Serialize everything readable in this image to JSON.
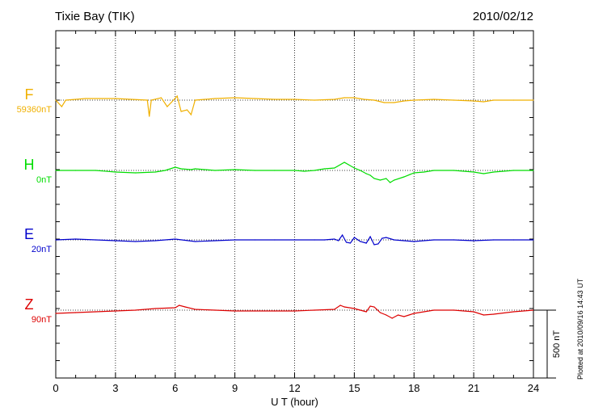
{
  "header": {
    "station": "Tixie Bay (TIK)",
    "date": "2010/02/12"
  },
  "note": "Plotted at 2010/09/16 14:43 UT",
  "scale_label": "500 nT",
  "chart_data": {
    "type": "line",
    "xlabel": "U T (hour)",
    "xlim": [
      0,
      24
    ],
    "xticks": [
      "0",
      "3",
      "6",
      "9",
      "12",
      "15",
      "18",
      "21",
      "24"
    ],
    "grid": "vertical dotted lines every 3 hours",
    "scale_bar_nT": 500,
    "series": [
      {
        "name": "F",
        "baseline": "59360nT",
        "color": "#f0b000",
        "points": [
          [
            0,
            0
          ],
          [
            0.3,
            -8
          ],
          [
            0.5,
            0
          ],
          [
            1.5,
            2
          ],
          [
            3,
            2
          ],
          [
            4.6,
            0
          ],
          [
            4.7,
            -20
          ],
          [
            4.8,
            0
          ],
          [
            5.3,
            3
          ],
          [
            5.6,
            -8
          ],
          [
            5.8,
            -3
          ],
          [
            6.1,
            5
          ],
          [
            6.3,
            -14
          ],
          [
            6.6,
            -12
          ],
          [
            6.8,
            -18
          ],
          [
            7,
            0
          ],
          [
            8,
            2
          ],
          [
            9,
            3
          ],
          [
            10,
            2
          ],
          [
            11,
            1
          ],
          [
            12,
            1
          ],
          [
            13,
            0
          ],
          [
            14,
            1
          ],
          [
            14.5,
            3
          ],
          [
            15,
            3
          ],
          [
            15.5,
            1
          ],
          [
            16,
            0
          ],
          [
            16.5,
            -3
          ],
          [
            17,
            -3
          ],
          [
            17.5,
            -1
          ],
          [
            18,
            0
          ],
          [
            19,
            1
          ],
          [
            20,
            0
          ],
          [
            21,
            -1
          ],
          [
            21.5,
            -2
          ],
          [
            22,
            0
          ],
          [
            23,
            0
          ],
          [
            24,
            0
          ]
        ]
      },
      {
        "name": "H",
        "baseline": "0nT",
        "color": "#00dd00",
        "points": [
          [
            0,
            0
          ],
          [
            1,
            0
          ],
          [
            2,
            0
          ],
          [
            3,
            -2
          ],
          [
            4,
            -3
          ],
          [
            5,
            -2
          ],
          [
            5.5,
            0
          ],
          [
            6,
            4
          ],
          [
            6.3,
            2
          ],
          [
            6.8,
            1
          ],
          [
            7,
            2
          ],
          [
            8,
            0
          ],
          [
            9,
            1
          ],
          [
            10,
            0
          ],
          [
            11,
            0
          ],
          [
            12,
            0
          ],
          [
            12.5,
            -1
          ],
          [
            13,
            0
          ],
          [
            13.5,
            2
          ],
          [
            14,
            3
          ],
          [
            14.5,
            10
          ],
          [
            15,
            3
          ],
          [
            15.3,
            0
          ],
          [
            15.6,
            -4
          ],
          [
            15.8,
            -6
          ],
          [
            16,
            -10
          ],
          [
            16.3,
            -12
          ],
          [
            16.6,
            -10
          ],
          [
            16.8,
            -15
          ],
          [
            17,
            -12
          ],
          [
            17.5,
            -8
          ],
          [
            18,
            -3
          ],
          [
            18.5,
            -2
          ],
          [
            19,
            0
          ],
          [
            20,
            0
          ],
          [
            21,
            -2
          ],
          [
            21.5,
            -4
          ],
          [
            22,
            -2
          ],
          [
            23,
            0
          ],
          [
            24,
            0
          ]
        ]
      },
      {
        "name": "E",
        "baseline": "20nT",
        "color": "#0000cc",
        "points": [
          [
            0,
            0
          ],
          [
            1,
            1
          ],
          [
            2,
            0
          ],
          [
            3,
            -1
          ],
          [
            4,
            -2
          ],
          [
            5,
            -1
          ],
          [
            6,
            1
          ],
          [
            7,
            -2
          ],
          [
            8,
            -1
          ],
          [
            9,
            0
          ],
          [
            10,
            0
          ],
          [
            11,
            0
          ],
          [
            12,
            0
          ],
          [
            13,
            0
          ],
          [
            13.5,
            0
          ],
          [
            14,
            1
          ],
          [
            14.2,
            -1
          ],
          [
            14.4,
            6
          ],
          [
            14.6,
            -3
          ],
          [
            14.8,
            -4
          ],
          [
            15,
            3
          ],
          [
            15.3,
            -2
          ],
          [
            15.6,
            -4
          ],
          [
            15.8,
            4
          ],
          [
            16,
            -6
          ],
          [
            16.2,
            -5
          ],
          [
            16.4,
            2
          ],
          [
            16.6,
            3
          ],
          [
            17,
            0
          ],
          [
            17.5,
            -1
          ],
          [
            18,
            -2
          ],
          [
            19,
            0
          ],
          [
            20,
            0
          ],
          [
            21,
            -1
          ],
          [
            22,
            0
          ],
          [
            23,
            0
          ],
          [
            24,
            0
          ]
        ]
      },
      {
        "name": "Z",
        "baseline": "90nT",
        "color": "#dd0000",
        "points": [
          [
            0,
            -4
          ],
          [
            1,
            -3
          ],
          [
            2,
            -2
          ],
          [
            3,
            -1
          ],
          [
            4,
            0
          ],
          [
            5,
            2
          ],
          [
            6,
            3
          ],
          [
            6.2,
            6
          ],
          [
            6.5,
            4
          ],
          [
            7,
            1
          ],
          [
            8,
            0
          ],
          [
            9,
            -1
          ],
          [
            10,
            -1
          ],
          [
            11,
            -1
          ],
          [
            12,
            -1
          ],
          [
            13,
            0
          ],
          [
            14,
            1
          ],
          [
            14.3,
            6
          ],
          [
            14.5,
            4
          ],
          [
            15,
            2
          ],
          [
            15.3,
            0
          ],
          [
            15.6,
            -2
          ],
          [
            15.8,
            5
          ],
          [
            16,
            4
          ],
          [
            16.3,
            -3
          ],
          [
            16.6,
            -6
          ],
          [
            16.9,
            -10
          ],
          [
            17.2,
            -6
          ],
          [
            17.5,
            -8
          ],
          [
            18,
            -4
          ],
          [
            18.5,
            -2
          ],
          [
            19,
            0
          ],
          [
            20,
            0
          ],
          [
            21,
            -2
          ],
          [
            21.5,
            -6
          ],
          [
            22,
            -5
          ],
          [
            23,
            -2
          ],
          [
            24,
            0
          ]
        ]
      }
    ]
  }
}
